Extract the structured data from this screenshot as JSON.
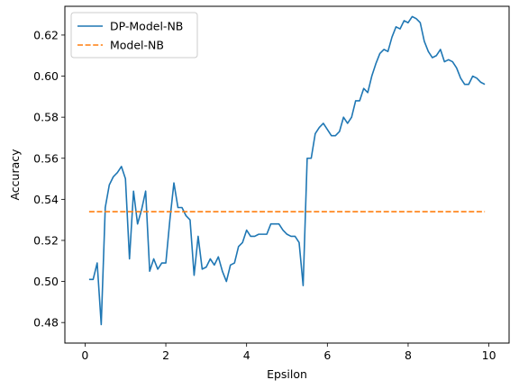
{
  "chart_data": {
    "type": "line",
    "title": "",
    "xlabel": "Epsilon",
    "ylabel": "Accuracy",
    "xlim": [
      -0.5,
      10.5
    ],
    "ylim": [
      0.47,
      0.634
    ],
    "xticks": [
      0,
      2,
      4,
      6,
      8,
      10
    ],
    "xtick_labels": [
      "0",
      "2",
      "4",
      "6",
      "8",
      "10"
    ],
    "yticks": [
      0.48,
      0.5,
      0.52,
      0.54,
      0.56,
      0.58,
      0.6,
      0.62
    ],
    "ytick_labels": [
      "0.48",
      "0.50",
      "0.52",
      "0.54",
      "0.56",
      "0.58",
      "0.60",
      "0.62"
    ],
    "grid": false,
    "legend_position": "top-left",
    "series": [
      {
        "name": "DP-Model-NB",
        "color": "#1f77b4",
        "style": "solid",
        "x": [
          0.1,
          0.2,
          0.3,
          0.4,
          0.5,
          0.6,
          0.7,
          0.8,
          0.9,
          1.0,
          1.1,
          1.2,
          1.3,
          1.4,
          1.5,
          1.6,
          1.7,
          1.8,
          1.9,
          2.0,
          2.1,
          2.2,
          2.3,
          2.4,
          2.5,
          2.6,
          2.7,
          2.8,
          2.9,
          3.0,
          3.1,
          3.2,
          3.3,
          3.4,
          3.5,
          3.6,
          3.7,
          3.8,
          3.9,
          4.0,
          4.1,
          4.2,
          4.3,
          4.4,
          4.5,
          4.6,
          4.7,
          4.8,
          4.9,
          5.0,
          5.1,
          5.2,
          5.3,
          5.4,
          5.5,
          5.6,
          5.7,
          5.8,
          5.9,
          6.0,
          6.1,
          6.2,
          6.3,
          6.4,
          6.5,
          6.6,
          6.7,
          6.8,
          6.9,
          7.0,
          7.1,
          7.2,
          7.3,
          7.4,
          7.5,
          7.6,
          7.7,
          7.8,
          7.9,
          8.0,
          8.1,
          8.2,
          8.3,
          8.4,
          8.5,
          8.6,
          8.7,
          8.8,
          8.9,
          9.0,
          9.1,
          9.2,
          9.3,
          9.4,
          9.5,
          9.6,
          9.7,
          9.8,
          9.9
        ],
        "y": [
          0.501,
          0.501,
          0.509,
          0.479,
          0.536,
          0.547,
          0.551,
          0.553,
          0.556,
          0.55,
          0.511,
          0.544,
          0.528,
          0.535,
          0.544,
          0.505,
          0.511,
          0.506,
          0.509,
          0.509,
          0.53,
          0.548,
          0.536,
          0.536,
          0.532,
          0.53,
          0.503,
          0.522,
          0.506,
          0.507,
          0.511,
          0.508,
          0.512,
          0.505,
          0.5,
          0.508,
          0.509,
          0.517,
          0.519,
          0.525,
          0.522,
          0.522,
          0.523,
          0.523,
          0.523,
          0.528,
          0.528,
          0.528,
          0.525,
          0.523,
          0.522,
          0.522,
          0.519,
          0.498,
          0.56,
          0.56,
          0.572,
          0.575,
          0.577,
          0.574,
          0.571,
          0.571,
          0.573,
          0.58,
          0.577,
          0.58,
          0.588,
          0.588,
          0.594,
          0.592,
          0.6,
          0.606,
          0.611,
          0.613,
          0.612,
          0.619,
          0.624,
          0.623,
          0.627,
          0.626,
          0.629,
          0.628,
          0.626,
          0.617,
          0.612,
          0.609,
          0.61,
          0.613,
          0.607,
          0.608,
          0.607,
          0.604,
          0.599,
          0.596,
          0.596,
          0.6,
          0.599,
          0.597,
          0.596
        ]
      },
      {
        "name": "Model-NB",
        "color": "#ff7f0e",
        "style": "dashed",
        "x": [
          0.1,
          9.9
        ],
        "y": [
          0.534,
          0.534
        ]
      }
    ]
  }
}
